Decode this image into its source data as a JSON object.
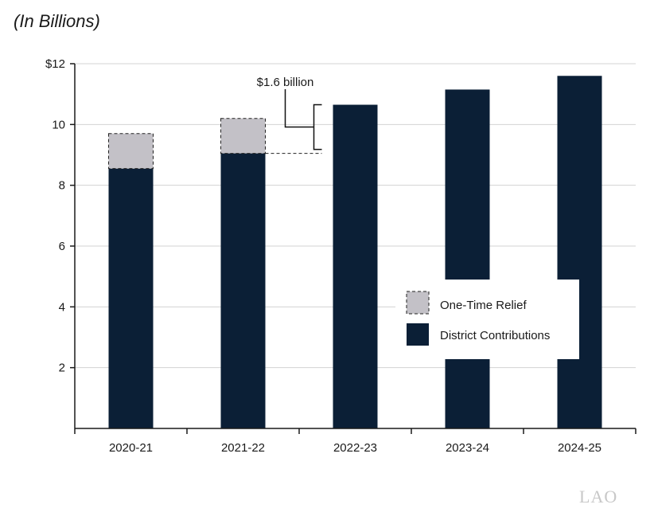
{
  "subtitle": "(In Billions)",
  "logo_text": "LAO",
  "colors": {
    "contributions": "#0b1f36",
    "relief": "#c3c1c7",
    "grid": "#d3d3d3",
    "axis": "#1a1a1a"
  },
  "chart_data": {
    "type": "bar",
    "stacked": true,
    "categories": [
      "2020-21",
      "2021-22",
      "2022-23",
      "2023-24",
      "2024-25"
    ],
    "series": [
      {
        "name": "District Contributions",
        "values": [
          8.55,
          9.05,
          10.65,
          11.15,
          11.6
        ]
      },
      {
        "name": "One-Time Relief",
        "values": [
          1.15,
          1.15,
          0,
          0,
          0
        ]
      }
    ],
    "ylim": [
      0,
      12
    ],
    "yticks": [
      2,
      4,
      6,
      8,
      10,
      12
    ],
    "ytick_labels": [
      "2",
      "4",
      "6",
      "8",
      "10",
      "$12"
    ],
    "xlabel": "",
    "ylabel": "",
    "grid": true,
    "legend": {
      "placement": "center-right",
      "items": [
        "One-Time Relief",
        "District Contributions"
      ]
    },
    "annotations": [
      {
        "text": "$1.6 billion",
        "category": "2022-23",
        "from": 9.05,
        "to": 10.65
      }
    ]
  }
}
